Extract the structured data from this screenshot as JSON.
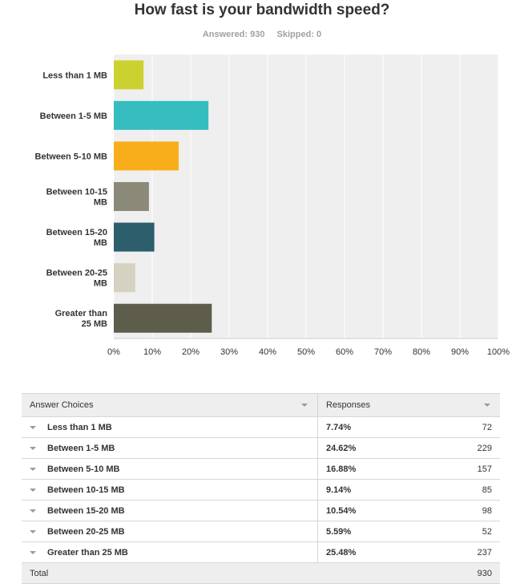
{
  "title": "How fast is your bandwidth speed?",
  "answered_label": "Answered: 930",
  "skipped_label": "Skipped: 0",
  "chart_data": {
    "type": "bar",
    "orientation": "horizontal",
    "title": "How fast is your bandwidth speed?",
    "categories": [
      [
        "Less than 1 MB"
      ],
      [
        "Between 1-5 MB"
      ],
      [
        "Between 5-10 MB"
      ],
      [
        "Between 10-15",
        "MB"
      ],
      [
        "Between 15-20",
        "MB"
      ],
      [
        "Between 20-25",
        "MB"
      ],
      [
        "Greater than",
        "25 MB"
      ]
    ],
    "values": [
      7.74,
      24.62,
      16.88,
      9.14,
      10.54,
      5.59,
      25.48
    ],
    "colors": [
      "#cbd22f",
      "#36bdbf",
      "#f8ae1b",
      "#8b8a78",
      "#2c5e6b",
      "#d6d2c2",
      "#5e5c4b"
    ],
    "xlim": [
      0,
      100
    ],
    "xticks": [
      "0%",
      "10%",
      "20%",
      "30%",
      "40%",
      "50%",
      "60%",
      "70%",
      "80%",
      "90%",
      "100%"
    ],
    "grid": true
  },
  "table": {
    "headers": {
      "choice": "Answer Choices",
      "responses": "Responses"
    },
    "rows": [
      {
        "choice": "Less than 1 MB",
        "percent": "7.74%",
        "count": "72"
      },
      {
        "choice": "Between 1-5 MB",
        "percent": "24.62%",
        "count": "229"
      },
      {
        "choice": "Between 5-10 MB",
        "percent": "16.88%",
        "count": "157"
      },
      {
        "choice": "Between 10-15 MB",
        "percent": "9.14%",
        "count": "85"
      },
      {
        "choice": "Between 15-20 MB",
        "percent": "10.54%",
        "count": "98"
      },
      {
        "choice": "Between 20-25 MB",
        "percent": "5.59%",
        "count": "52"
      },
      {
        "choice": "Greater than 25 MB",
        "percent": "25.48%",
        "count": "237"
      }
    ],
    "total_label": "Total",
    "total_value": "930"
  }
}
